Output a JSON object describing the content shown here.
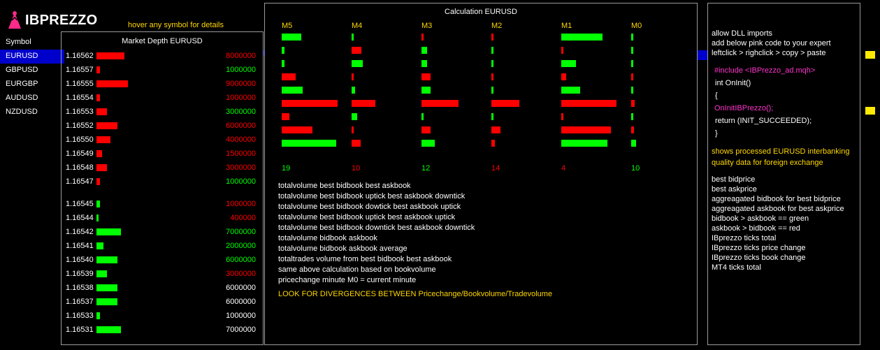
{
  "logo": {
    "text": "IBPREZZO"
  },
  "hint": "hover any symbol for details",
  "symbols": {
    "header": "Symbol",
    "items": [
      "EURUSD",
      "GBPUSD",
      "EURGBP",
      "AUDUSD",
      "NZDUSD"
    ],
    "active": "EURUSD"
  },
  "market_depth": {
    "title": "Market Depth EURUSD",
    "colors": {
      "red": "#ff0000",
      "green": "#00ff00",
      "white": "#ffffff"
    },
    "rows": [
      {
        "price": "1.16562",
        "volume": "8000000",
        "side": "ask",
        "color": "red",
        "bar": 0.8
      },
      {
        "price": "1.16557",
        "volume": "1000000",
        "side": "ask",
        "color": "green",
        "bar": 0.1
      },
      {
        "price": "1.16555",
        "volume": "9000000",
        "side": "ask",
        "color": "red",
        "bar": 0.9
      },
      {
        "price": "1.16554",
        "volume": "1000000",
        "side": "ask",
        "color": "red",
        "bar": 0.1
      },
      {
        "price": "1.16553",
        "volume": "3000000",
        "side": "ask",
        "color": "green",
        "bar": 0.3
      },
      {
        "price": "1.16552",
        "volume": "6000000",
        "side": "ask",
        "color": "red",
        "bar": 0.6
      },
      {
        "price": "1.16550",
        "volume": "4000000",
        "side": "ask",
        "color": "red",
        "bar": 0.4
      },
      {
        "price": "1.16549",
        "volume": "1500000",
        "side": "ask",
        "color": "red",
        "bar": 0.15
      },
      {
        "price": "1.16548",
        "volume": "3000000",
        "side": "ask",
        "color": "red",
        "bar": 0.3
      },
      {
        "price": "1.16547",
        "volume": "1000000",
        "side": "ask",
        "color": "green",
        "bar": 0.1
      },
      {
        "price": "1.16545",
        "volume": "1000000",
        "side": "bid",
        "color": "red",
        "bar": 0.1
      },
      {
        "price": "1.16544",
        "volume": "400000",
        "side": "bid",
        "color": "red",
        "bar": 0.04
      },
      {
        "price": "1.16542",
        "volume": "7000000",
        "side": "bid",
        "color": "green",
        "bar": 0.7
      },
      {
        "price": "1.16541",
        "volume": "2000000",
        "side": "bid",
        "color": "green",
        "bar": 0.2
      },
      {
        "price": "1.16540",
        "volume": "6000000",
        "side": "bid",
        "color": "green",
        "bar": 0.6
      },
      {
        "price": "1.16539",
        "volume": "3000000",
        "side": "bid",
        "color": "red",
        "bar": 0.3
      },
      {
        "price": "1.16538",
        "volume": "6000000",
        "side": "bid",
        "color": "white",
        "bar": 0.6
      },
      {
        "price": "1.16537",
        "volume": "6000000",
        "side": "bid",
        "color": "white",
        "bar": 0.6
      },
      {
        "price": "1.16533",
        "volume": "1000000",
        "side": "bid",
        "color": "white",
        "bar": 0.1
      },
      {
        "price": "1.16531",
        "volume": "7000000",
        "side": "bid",
        "color": "white",
        "bar": 0.7
      }
    ]
  },
  "calculation": {
    "title": "Calculation EURUSD",
    "columns": [
      {
        "label": "M5",
        "total": "19",
        "total_color": "green",
        "bars": [
          {
            "v": 0.35,
            "c": "green"
          },
          {
            "v": 0.05,
            "c": "green"
          },
          {
            "v": 0.05,
            "c": "green"
          },
          {
            "v": 0.25,
            "c": "red"
          },
          {
            "v": 0.38,
            "c": "green"
          },
          {
            "v": 1.0,
            "c": "red"
          },
          {
            "v": 0.14,
            "c": "red"
          },
          {
            "v": 0.55,
            "c": "red"
          },
          {
            "v": 0.98,
            "c": "green"
          }
        ]
      },
      {
        "label": "M4",
        "total": "10",
        "total_color": "red",
        "bars": [
          {
            "v": 0.03,
            "c": "green"
          },
          {
            "v": 0.18,
            "c": "red"
          },
          {
            "v": 0.2,
            "c": "green"
          },
          {
            "v": 0.04,
            "c": "red"
          },
          {
            "v": 0.06,
            "c": "green"
          },
          {
            "v": 0.42,
            "c": "red"
          },
          {
            "v": 0.1,
            "c": "green"
          },
          {
            "v": 0.04,
            "c": "red"
          },
          {
            "v": 0.16,
            "c": "red"
          }
        ]
      },
      {
        "label": "M3",
        "total": "12",
        "total_color": "green",
        "bars": [
          {
            "v": 0.03,
            "c": "red"
          },
          {
            "v": 0.1,
            "c": "green"
          },
          {
            "v": 0.1,
            "c": "green"
          },
          {
            "v": 0.16,
            "c": "red"
          },
          {
            "v": 0.16,
            "c": "green"
          },
          {
            "v": 0.66,
            "c": "red"
          },
          {
            "v": 0.02,
            "c": "green"
          },
          {
            "v": 0.16,
            "c": "red"
          },
          {
            "v": 0.24,
            "c": "green"
          }
        ]
      },
      {
        "label": "M2",
        "total": "14",
        "total_color": "red",
        "bars": [
          {
            "v": 0.04,
            "c": "red"
          },
          {
            "v": 0.04,
            "c": "green"
          },
          {
            "v": 0.04,
            "c": "green"
          },
          {
            "v": 0.04,
            "c": "red"
          },
          {
            "v": 0.04,
            "c": "green"
          },
          {
            "v": 0.5,
            "c": "red"
          },
          {
            "v": 0.04,
            "c": "green"
          },
          {
            "v": 0.16,
            "c": "red"
          },
          {
            "v": 0.06,
            "c": "red"
          }
        ]
      },
      {
        "label": "M1",
        "total": "4",
        "total_color": "red",
        "bars": [
          {
            "v": 0.74,
            "c": "green"
          },
          {
            "v": 0.03,
            "c": "red"
          },
          {
            "v": 0.26,
            "c": "green"
          },
          {
            "v": 0.09,
            "c": "red"
          },
          {
            "v": 0.34,
            "c": "green"
          },
          {
            "v": 0.99,
            "c": "red"
          },
          {
            "v": 0.03,
            "c": "red"
          },
          {
            "v": 0.89,
            "c": "red"
          },
          {
            "v": 0.83,
            "c": "green"
          }
        ]
      },
      {
        "label": "M0",
        "total": "10",
        "total_color": "green",
        "bars": [
          {
            "v": 0.02,
            "c": "green"
          },
          {
            "v": 0.02,
            "c": "green"
          },
          {
            "v": 0.02,
            "c": "green"
          },
          {
            "v": 0.02,
            "c": "red"
          },
          {
            "v": 0.07,
            "c": "green"
          },
          {
            "v": 0.19,
            "c": "red"
          },
          {
            "v": 0.02,
            "c": "green"
          },
          {
            "v": 0.17,
            "c": "red"
          },
          {
            "v": 0.25,
            "c": "green"
          }
        ]
      }
    ],
    "legend": [
      "totalvolume best bidbook best askbook",
      "totalvolume best bidbook uptick best askbook downtick",
      "totalvolume best bidbook dowtick best askbook uptick",
      "totalvolume best bidbook uptick best askbook uptick",
      "totalvolume best bidbook downtick best askbook downtick",
      "totalvolume bidbook askbook",
      "totalvolume bidbook askbook average",
      "totaltrades volume from best bidbook best askbook",
      "same above calculation based on bookvolume",
      "pricechange minute M0 = current minute"
    ],
    "warning": "LOOK FOR DIVERGENCES BETWEEN Pricechange/Bookvolume/Tradevolume"
  },
  "info": {
    "intro": [
      "allow DLL imports",
      "add below pink code to your expert",
      "leftclick > righclick > copy > paste"
    ],
    "code": [
      {
        "text": "#include <IBPrezzo_ad.mqh>",
        "color": "pink",
        "indent": 4
      },
      {
        "text": "int OnInit()",
        "color": "white",
        "indent": 5
      },
      {
        "text": "{",
        "color": "white",
        "indent": 5
      },
      {
        "text": "OnInitIBPrezzo();",
        "color": "pink",
        "indent": 4
      },
      {
        "text": "return (INIT_SUCCEEDED);",
        "color": "white",
        "indent": 5
      },
      {
        "text": "}",
        "color": "white",
        "indent": 5
      }
    ],
    "shows": [
      "shows processed  EURUSD  interbanking",
      "quality data for foreign exchange"
    ],
    "descriptions": [
      "best bidprice",
      "best askprice",
      "aggreagated bidbook for best bidprice",
      "aggreagated askbook for best askprice",
      "bidbook > askbook == green",
      "askbook > bidbook == red",
      "IBprezzo ticks total",
      "IBprezzo ticks price change",
      "IBprezzo ticks book change",
      "MT4 ticks total"
    ]
  },
  "colors": {
    "red": "#ff0000",
    "green": "#00ff00",
    "white": "#ffffff",
    "yellow": "#ffd700",
    "pink": "#ff33cc",
    "blue": "#0000cc"
  }
}
